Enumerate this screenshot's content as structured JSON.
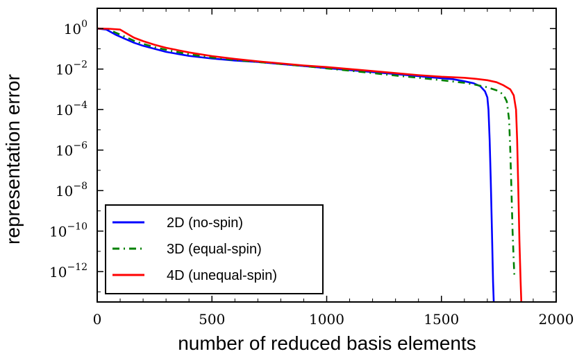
{
  "chart_data": {
    "type": "line",
    "title": "",
    "xlabel": "number of reduced basis elements",
    "ylabel": "representation error",
    "xlim": [
      0,
      2000
    ],
    "ylim_log10": [
      -13.5,
      1.0
    ],
    "y_scale": "log",
    "grid": false,
    "legend_position": "lower-left",
    "x_ticks": [
      {
        "value": 0,
        "label": "0"
      },
      {
        "value": 500,
        "label": "500"
      },
      {
        "value": 1000,
        "label": "1000"
      },
      {
        "value": 1500,
        "label": "1500"
      },
      {
        "value": 2000,
        "label": "2000"
      }
    ],
    "y_ticks": [
      {
        "exp": 0,
        "base": "10",
        "sup": "0"
      },
      {
        "exp": -2,
        "base": "10",
        "sup": "−2"
      },
      {
        "exp": -4,
        "base": "10",
        "sup": "−4"
      },
      {
        "exp": -6,
        "base": "10",
        "sup": "−6"
      },
      {
        "exp": -8,
        "base": "10",
        "sup": "−8"
      },
      {
        "exp": -10,
        "base": "10",
        "sup": "−10"
      },
      {
        "exp": -12,
        "base": "10",
        "sup": "−12"
      }
    ],
    "series": [
      {
        "name": "2D (no-spin)",
        "color": "#0000ff",
        "style": "solid",
        "points": [
          [
            0,
            0
          ],
          [
            40,
            -0.05
          ],
          [
            80,
            -0.3
          ],
          [
            120,
            -0.5
          ],
          [
            160,
            -0.7
          ],
          [
            200,
            -0.85
          ],
          [
            250,
            -1.0
          ],
          [
            300,
            -1.15
          ],
          [
            400,
            -1.35
          ],
          [
            500,
            -1.48
          ],
          [
            600,
            -1.58
          ],
          [
            700,
            -1.65
          ],
          [
            800,
            -1.75
          ],
          [
            900,
            -1.85
          ],
          [
            1000,
            -1.95
          ],
          [
            1100,
            -2.05
          ],
          [
            1200,
            -2.15
          ],
          [
            1300,
            -2.25
          ],
          [
            1400,
            -2.35
          ],
          [
            1500,
            -2.45
          ],
          [
            1550,
            -2.5
          ],
          [
            1600,
            -2.6
          ],
          [
            1640,
            -2.7
          ],
          [
            1670,
            -2.85
          ],
          [
            1690,
            -3.1
          ],
          [
            1700,
            -3.4
          ],
          [
            1705,
            -4.0
          ],
          [
            1710,
            -5.5
          ],
          [
            1715,
            -7.5
          ],
          [
            1720,
            -10.0
          ],
          [
            1725,
            -12.5
          ],
          [
            1728,
            -13.5
          ]
        ]
      },
      {
        "name": "3D (equal-spin)",
        "color": "#008000",
        "style": "dashdot",
        "points": [
          [
            0,
            0
          ],
          [
            50,
            -0.02
          ],
          [
            80,
            -0.2
          ],
          [
            120,
            -0.4
          ],
          [
            160,
            -0.6
          ],
          [
            200,
            -0.75
          ],
          [
            250,
            -0.92
          ],
          [
            300,
            -1.05
          ],
          [
            400,
            -1.27
          ],
          [
            500,
            -1.43
          ],
          [
            600,
            -1.55
          ],
          [
            700,
            -1.65
          ],
          [
            800,
            -1.75
          ],
          [
            900,
            -1.85
          ],
          [
            1000,
            -1.97
          ],
          [
            1100,
            -2.08
          ],
          [
            1200,
            -2.2
          ],
          [
            1300,
            -2.32
          ],
          [
            1400,
            -2.43
          ],
          [
            1500,
            -2.55
          ],
          [
            1600,
            -2.68
          ],
          [
            1650,
            -2.78
          ],
          [
            1700,
            -2.9
          ],
          [
            1740,
            -3.05
          ],
          [
            1770,
            -3.25
          ],
          [
            1785,
            -3.6
          ],
          [
            1795,
            -4.5
          ],
          [
            1800,
            -6.0
          ],
          [
            1805,
            -8.0
          ],
          [
            1810,
            -10.0
          ],
          [
            1815,
            -11.5
          ],
          [
            1818,
            -12.2
          ]
        ]
      },
      {
        "name": "4D (unequal-spin)",
        "color": "#ff0000",
        "style": "solid",
        "points": [
          [
            0,
            0
          ],
          [
            50,
            -0.01
          ],
          [
            100,
            -0.05
          ],
          [
            130,
            -0.25
          ],
          [
            160,
            -0.45
          ],
          [
            200,
            -0.62
          ],
          [
            250,
            -0.8
          ],
          [
            300,
            -0.95
          ],
          [
            400,
            -1.18
          ],
          [
            500,
            -1.36
          ],
          [
            600,
            -1.5
          ],
          [
            700,
            -1.62
          ],
          [
            800,
            -1.72
          ],
          [
            900,
            -1.82
          ],
          [
            1000,
            -1.9
          ],
          [
            1100,
            -2.0
          ],
          [
            1200,
            -2.1
          ],
          [
            1300,
            -2.2
          ],
          [
            1400,
            -2.3
          ],
          [
            1500,
            -2.38
          ],
          [
            1600,
            -2.43
          ],
          [
            1650,
            -2.48
          ],
          [
            1700,
            -2.55
          ],
          [
            1740,
            -2.65
          ],
          [
            1770,
            -2.8
          ],
          [
            1800,
            -3.0
          ],
          [
            1815,
            -3.3
          ],
          [
            1825,
            -4.0
          ],
          [
            1830,
            -5.5
          ],
          [
            1835,
            -8.0
          ],
          [
            1840,
            -10.5
          ],
          [
            1845,
            -12.5
          ],
          [
            1848,
            -13.5
          ]
        ]
      }
    ]
  }
}
